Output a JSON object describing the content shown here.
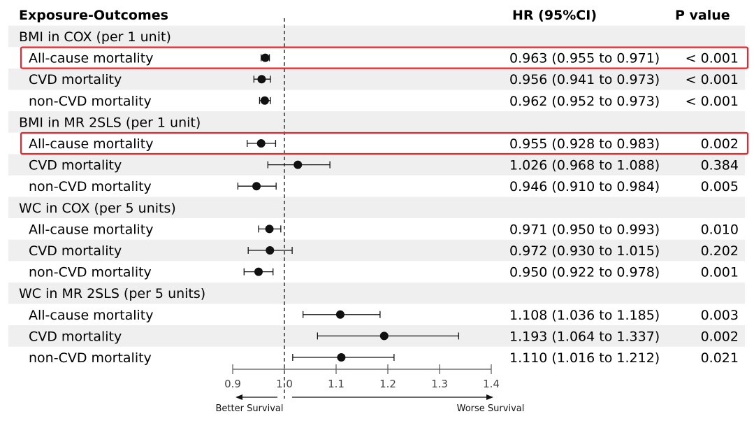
{
  "headers": {
    "label": "Exposure-Outcomes",
    "hr": "HR (95%CI)",
    "p": "P value"
  },
  "chart_data": {
    "type": "forest",
    "reference_line": 1.0,
    "xlim": [
      0.9,
      1.4
    ],
    "xticks": [
      "0.9",
      "1.0",
      "1.1",
      "1.2",
      "1.3",
      "1.4"
    ],
    "xtick_values": [
      0.9,
      1.0,
      1.1,
      1.2,
      1.3,
      1.4
    ],
    "arrow_left": "Better Survival",
    "arrow_right": "Worse Survival",
    "groups": [
      {
        "label": "BMI in COX (per 1 unit)",
        "rows": [
          {
            "outcome": "All-cause mortality",
            "hr": 0.963,
            "lo": 0.955,
            "hi": 0.971,
            "hr_text": "0.963 (0.955 to 0.971)",
            "p": "< 0.001",
            "highlight": true
          },
          {
            "outcome": "CVD mortality",
            "hr": 0.956,
            "lo": 0.941,
            "hi": 0.973,
            "hr_text": "0.956 (0.941 to 0.973)",
            "p": "< 0.001",
            "highlight": false
          },
          {
            "outcome": "non-CVD mortality",
            "hr": 0.962,
            "lo": 0.952,
            "hi": 0.973,
            "hr_text": "0.962 (0.952 to 0.973)",
            "p": "< 0.001",
            "highlight": false
          }
        ]
      },
      {
        "label": "BMI in MR 2SLS (per 1 unit)",
        "rows": [
          {
            "outcome": "All-cause mortality",
            "hr": 0.955,
            "lo": 0.928,
            "hi": 0.983,
            "hr_text": "0.955 (0.928 to 0.983)",
            "p": "0.002",
            "highlight": true
          },
          {
            "outcome": "CVD mortality",
            "hr": 1.026,
            "lo": 0.968,
            "hi": 1.088,
            "hr_text": "1.026 (0.968 to 1.088)",
            "p": "0.384",
            "highlight": false
          },
          {
            "outcome": "non-CVD mortality",
            "hr": 0.946,
            "lo": 0.91,
            "hi": 0.984,
            "hr_text": "0.946 (0.910 to 0.984)",
            "p": "0.005",
            "highlight": false
          }
        ]
      },
      {
        "label": "WC in COX (per 5 units)",
        "rows": [
          {
            "outcome": "All-cause mortality",
            "hr": 0.971,
            "lo": 0.95,
            "hi": 0.993,
            "hr_text": "0.971 (0.950 to 0.993)",
            "p": "0.010",
            "highlight": false
          },
          {
            "outcome": "CVD mortality",
            "hr": 0.972,
            "lo": 0.93,
            "hi": 1.015,
            "hr_text": "0.972 (0.930 to 1.015)",
            "p": "0.202",
            "highlight": false
          },
          {
            "outcome": "non-CVD mortality",
            "hr": 0.95,
            "lo": 0.922,
            "hi": 0.978,
            "hr_text": "0.950 (0.922 to 0.978)",
            "p": "0.001",
            "highlight": false
          }
        ]
      },
      {
        "label": "WC in MR 2SLS (per 5 units)",
        "rows": [
          {
            "outcome": "All-cause mortality",
            "hr": 1.108,
            "lo": 1.036,
            "hi": 1.185,
            "hr_text": "1.108 (1.036 to 1.185)",
            "p": "0.003",
            "highlight": false
          },
          {
            "outcome": "CVD mortality",
            "hr": 1.193,
            "lo": 1.064,
            "hi": 1.337,
            "hr_text": "1.193 (1.064 to 1.337)",
            "p": "0.002",
            "highlight": false
          },
          {
            "outcome": "non-CVD mortality",
            "hr": 1.11,
            "lo": 1.016,
            "hi": 1.212,
            "hr_text": "1.110 (1.016 to 1.212)",
            "p": "0.021",
            "highlight": false
          }
        ]
      }
    ]
  },
  "colors": {
    "stripe": "#efefef",
    "highlight": "#e8262b",
    "ink": "#111111",
    "axis": "#555555"
  }
}
